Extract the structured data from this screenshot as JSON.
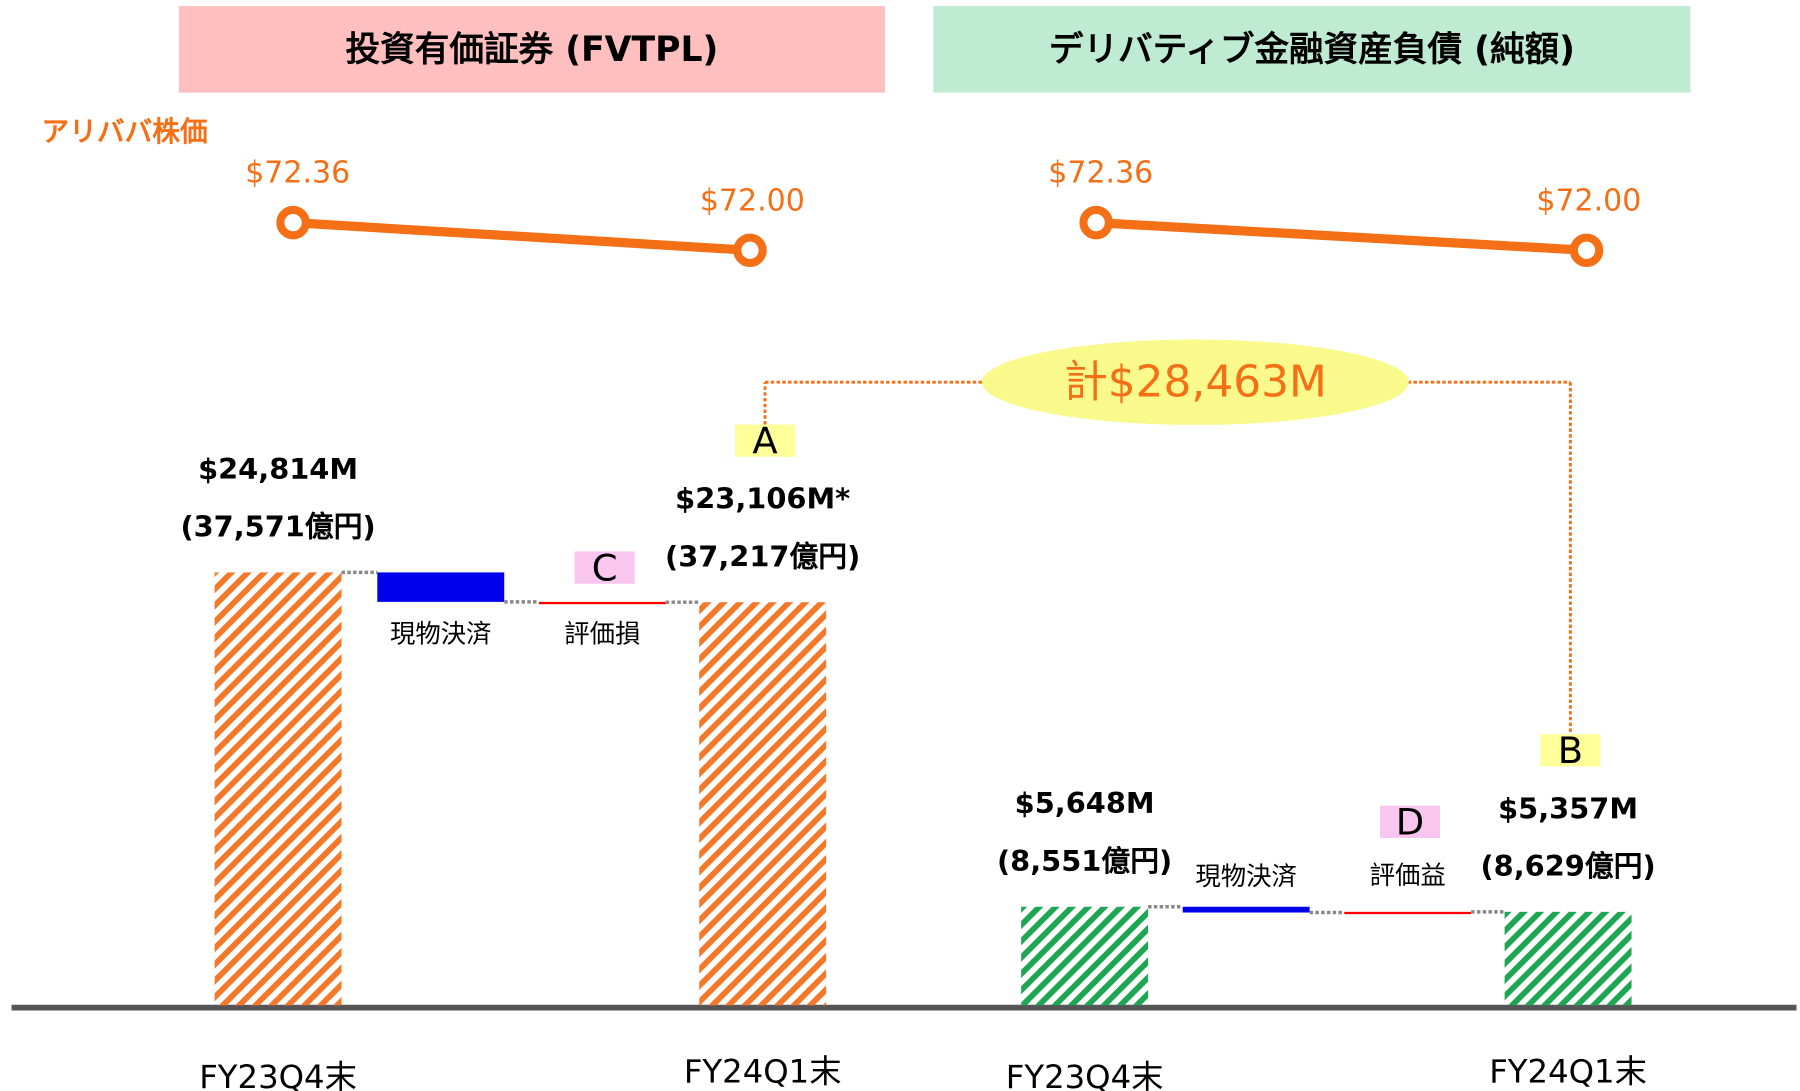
{
  "chart_data": [
    {
      "type": "waterfall",
      "title": "投資有価証券 (FVTPL)",
      "header_color": "#ffbfbf",
      "color": "#f4782a",
      "price_label": "アリババ株価",
      "price_color": "#f46f16",
      "prices": [
        72.36,
        72.0
      ],
      "price_labels": [
        "$72.36",
        "$72.00"
      ],
      "price_ylim": [
        71.5,
        73.0
      ],
      "ylim": [
        0,
        25000
      ],
      "start": {
        "category": "FY23Q4末",
        "value": 24814,
        "value_label": "$24,814M",
        "yen_label": "(37,571億円)"
      },
      "steps": [
        {
          "name": "現物決済",
          "value": -1690,
          "color": "#0000ee"
        },
        {
          "name": "評価損",
          "value": -18,
          "color": "#ff0000",
          "tag": "C"
        }
      ],
      "end": {
        "category": "FY24Q1末",
        "value": 23106,
        "value_label": "$23,106M*",
        "yen_label": "(37,217億円)",
        "tag": "A"
      }
    },
    {
      "type": "waterfall",
      "title": "デリバティブ金融資産負債 (純額)",
      "header_color": "#c0ebd3",
      "color": "#1ea653",
      "price_color": "#f46f16",
      "prices": [
        72.36,
        72.0
      ],
      "price_labels": [
        "$72.36",
        "$72.00"
      ],
      "price_ylim": [
        71.5,
        73.0
      ],
      "ylim": [
        0,
        25000
      ],
      "start": {
        "category": "FY23Q4末",
        "value": 5648,
        "value_label": "$5,648M",
        "yen_label": "(8,551億円)"
      },
      "steps": [
        {
          "name": "現物決済",
          "value": -330,
          "color": "#0000ee"
        },
        {
          "name": "評価益",
          "value": 39,
          "color": "#ff0000",
          "tag": "D"
        }
      ],
      "end": {
        "category": "FY24Q1末",
        "value": 5357,
        "value_label": "$5,357M",
        "yen_label": "(8,629億円)",
        "tag": "B"
      }
    }
  ],
  "annotation": "計$28,463M"
}
